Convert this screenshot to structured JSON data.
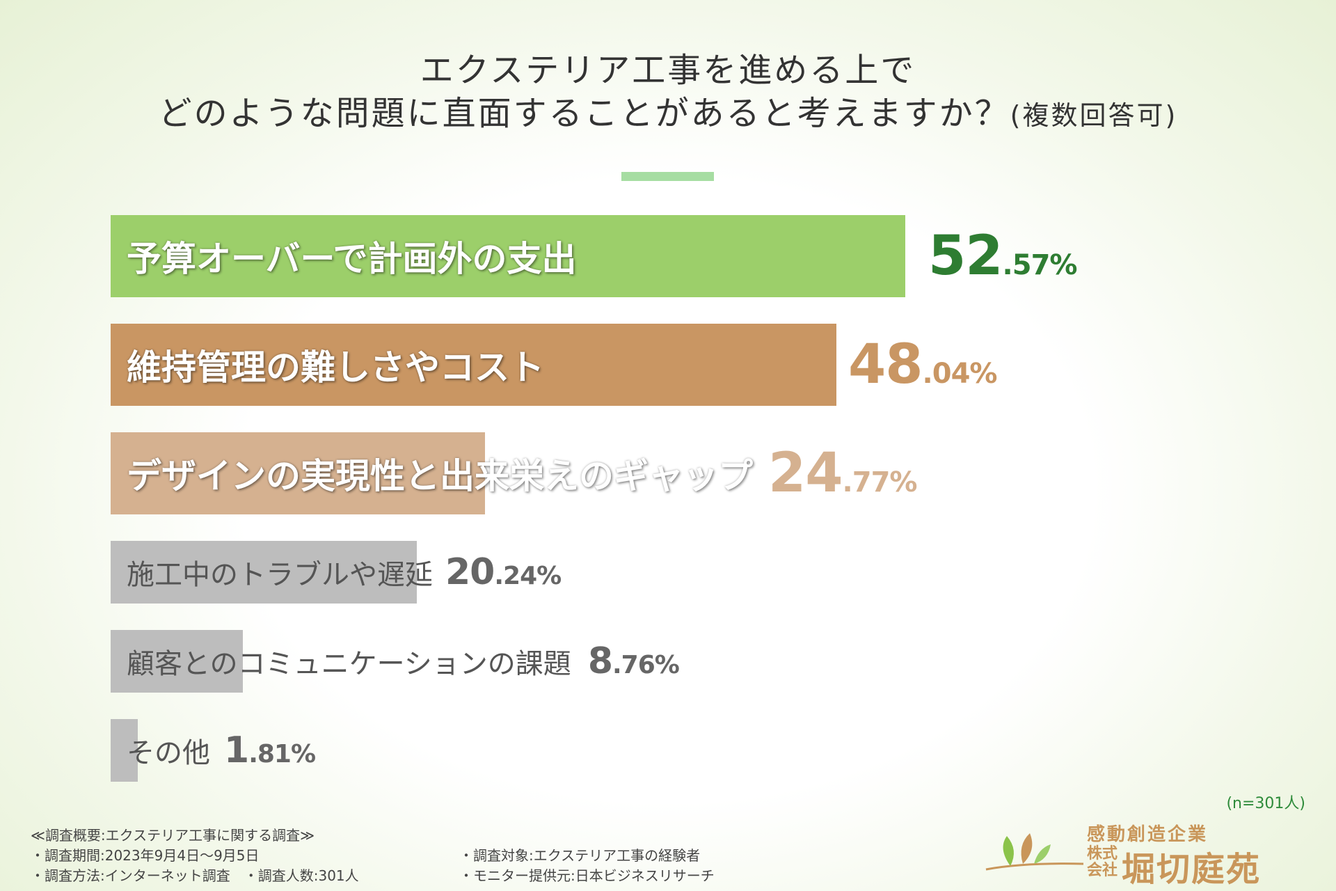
{
  "title": {
    "line1": "エクステリア工事を進める上で",
    "line2": "どのような問題に直面することがあると考えますか？",
    "note": "(複数回答可)"
  },
  "chart_data": {
    "type": "bar",
    "orientation": "horizontal",
    "categories": [
      "予算オーバーで計画外の支出",
      "維持管理の難しさやコスト",
      "デザインの実現性と出来栄えのギャップ",
      "施工中のトラブルや遅延",
      "顧客とのコミュニケーションの課題",
      "その他"
    ],
    "values": [
      52.57,
      48.04,
      24.77,
      20.24,
      8.76,
      1.81
    ],
    "value_labels": [
      {
        "int": "52",
        "frac": ".57%"
      },
      {
        "int": "48",
        "frac": ".04%"
      },
      {
        "int": "24",
        "frac": ".77%"
      },
      {
        "int": "20",
        "frac": ".24%"
      },
      {
        "int": "8",
        "frac": ".76%"
      },
      {
        "int": "1",
        "frac": ".81%"
      }
    ],
    "colors": [
      "#9ccf6a",
      "#c99663",
      "#d5b190",
      "#bdbdbd",
      "#bdbdbd",
      "#bdbdbd"
    ],
    "value_colors": [
      "#2e7d32",
      "#c99663",
      "#d5b190",
      "#666666",
      "#666666",
      "#666666"
    ],
    "xlim": [
      0,
      100
    ],
    "grid": false,
    "legend": "none"
  },
  "sample_note": "(n=301人)",
  "footer": {
    "heading": "≪調査概要:エクステリア工事に関する調査≫",
    "period": "・調査期間:2023年9月4日〜9月5日",
    "method": "・調査方法:インターネット調査　・調査人数:301人",
    "target": "・調査対象:エクステリア工事の経験者",
    "provider": "・モニター提供元:日本ビジネスリサーチ"
  },
  "logo": {
    "tagline": "感動創造企業",
    "kind": "株式会社",
    "name": "堀切庭苑",
    "color": "#c9965a"
  }
}
